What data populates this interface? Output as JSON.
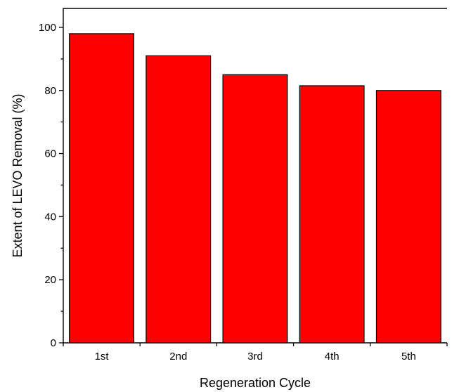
{
  "chart_data": {
    "type": "bar",
    "categories": [
      "1st",
      "2nd",
      "3rd",
      "4th",
      "5th"
    ],
    "values": [
      98,
      91,
      85,
      81.5,
      80
    ],
    "xlabel": "Regeneration Cycle",
    "ylabel": "Extent of LEVO Removal (%)",
    "ylim": [
      0,
      106
    ],
    "yticks": [
      0,
      20,
      40,
      60,
      80,
      100
    ],
    "bar_color": "#ff0000",
    "edge_color": "#000000",
    "grid": false,
    "frame": "top-and-right-closed"
  }
}
